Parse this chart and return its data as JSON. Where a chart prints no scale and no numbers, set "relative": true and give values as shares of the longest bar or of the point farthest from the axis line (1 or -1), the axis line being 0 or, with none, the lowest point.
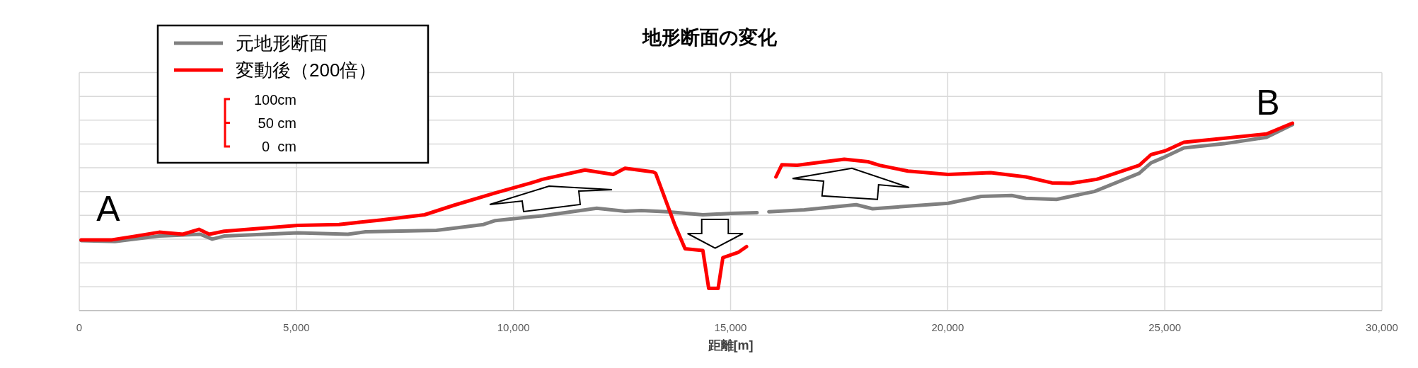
{
  "chart_data": {
    "type": "line",
    "title": "地形断面の変化",
    "xlabel": "距離[m]",
    "relative": true,
    "grid": true,
    "legend": "top left",
    "xlim": [
      0,
      30000
    ],
    "xticks": [
      0,
      {
        "value": 5000,
        "label": "5,000"
      },
      {
        "value": 10000,
        "label": "10,000"
      },
      {
        "value": 15000,
        "label": "15,000"
      },
      {
        "value": 20000,
        "label": "20,000"
      },
      {
        "value": 25000,
        "label": "25,000"
      },
      {
        "value": 30000,
        "label": "30,000"
      }
    ],
    "series": [
      {
        "name": "元地形断面",
        "color": "#808080",
        "x": [
          42,
          823,
          1841,
          2787,
          3063,
          3335,
          5032,
          6187,
          6594,
          8224,
          9310,
          9581,
          10396,
          10668,
          11917,
          12569,
          12949,
          13546,
          14361,
          15013,
          15610,
          15750,
          15882,
          16697,
          17891,
          18271,
          20010,
          20771,
          21476,
          21802,
          22508,
          23378,
          24410,
          24682,
          25007,
          25441,
          26365,
          27343,
          27941
        ],
        "values": [
          0.373,
          0.368,
          0.397,
          0.407,
          0.381,
          0.397,
          0.415,
          0.407,
          0.42,
          0.428,
          0.459,
          0.48,
          0.499,
          0.505,
          0.546,
          0.53,
          0.534,
          0.527,
          0.511,
          0.518,
          0.522,
          null,
          0.527,
          0.537,
          0.565,
          0.543,
          0.572,
          0.609,
          0.614,
          0.599,
          0.593,
          0.635,
          0.732,
          0.788,
          0.82,
          0.868,
          0.89,
          0.924,
          0.992
        ]
      },
      {
        "name": "変動後（200倍）",
        "color": "#ff0000",
        "x": [
          42,
          755,
          1298,
          1841,
          2384,
          2757,
          2995,
          3335,
          5032,
          5983,
          6933,
          7952,
          8631,
          9581,
          10396,
          10668,
          11646,
          12297,
          12569,
          13221,
          13275,
          13709,
          13953,
          14361,
          14497,
          14714,
          14823,
          15175,
          15366,
          15700,
          16045,
          16180,
          16534,
          17619,
          18163,
          18434,
          19086,
          20010,
          20988,
          21802,
          22400,
          22834,
          23432,
          23704,
          24410,
          24682,
          25007,
          25441,
          26148,
          27343,
          27941
        ],
        "values": [
          0.377,
          0.377,
          0.397,
          0.418,
          0.407,
          0.433,
          0.407,
          0.423,
          0.454,
          0.459,
          0.483,
          0.511,
          0.562,
          0.627,
          0.68,
          0.7,
          0.75,
          0.726,
          0.759,
          0.739,
          0.732,
          0.461,
          0.329,
          0.32,
          0.118,
          0.118,
          0.282,
          0.31,
          0.341,
          null,
          0.713,
          0.778,
          0.775,
          0.807,
          0.794,
          0.775,
          0.744,
          0.726,
          0.736,
          0.713,
          0.681,
          0.679,
          0.7,
          0.72,
          0.775,
          0.832,
          0.852,
          0.898,
          0.914,
          0.942,
          1.0
        ]
      }
    ],
    "annotations": [
      "A",
      "B",
      "100cm",
      "50 cm",
      "0  cm"
    ]
  }
}
